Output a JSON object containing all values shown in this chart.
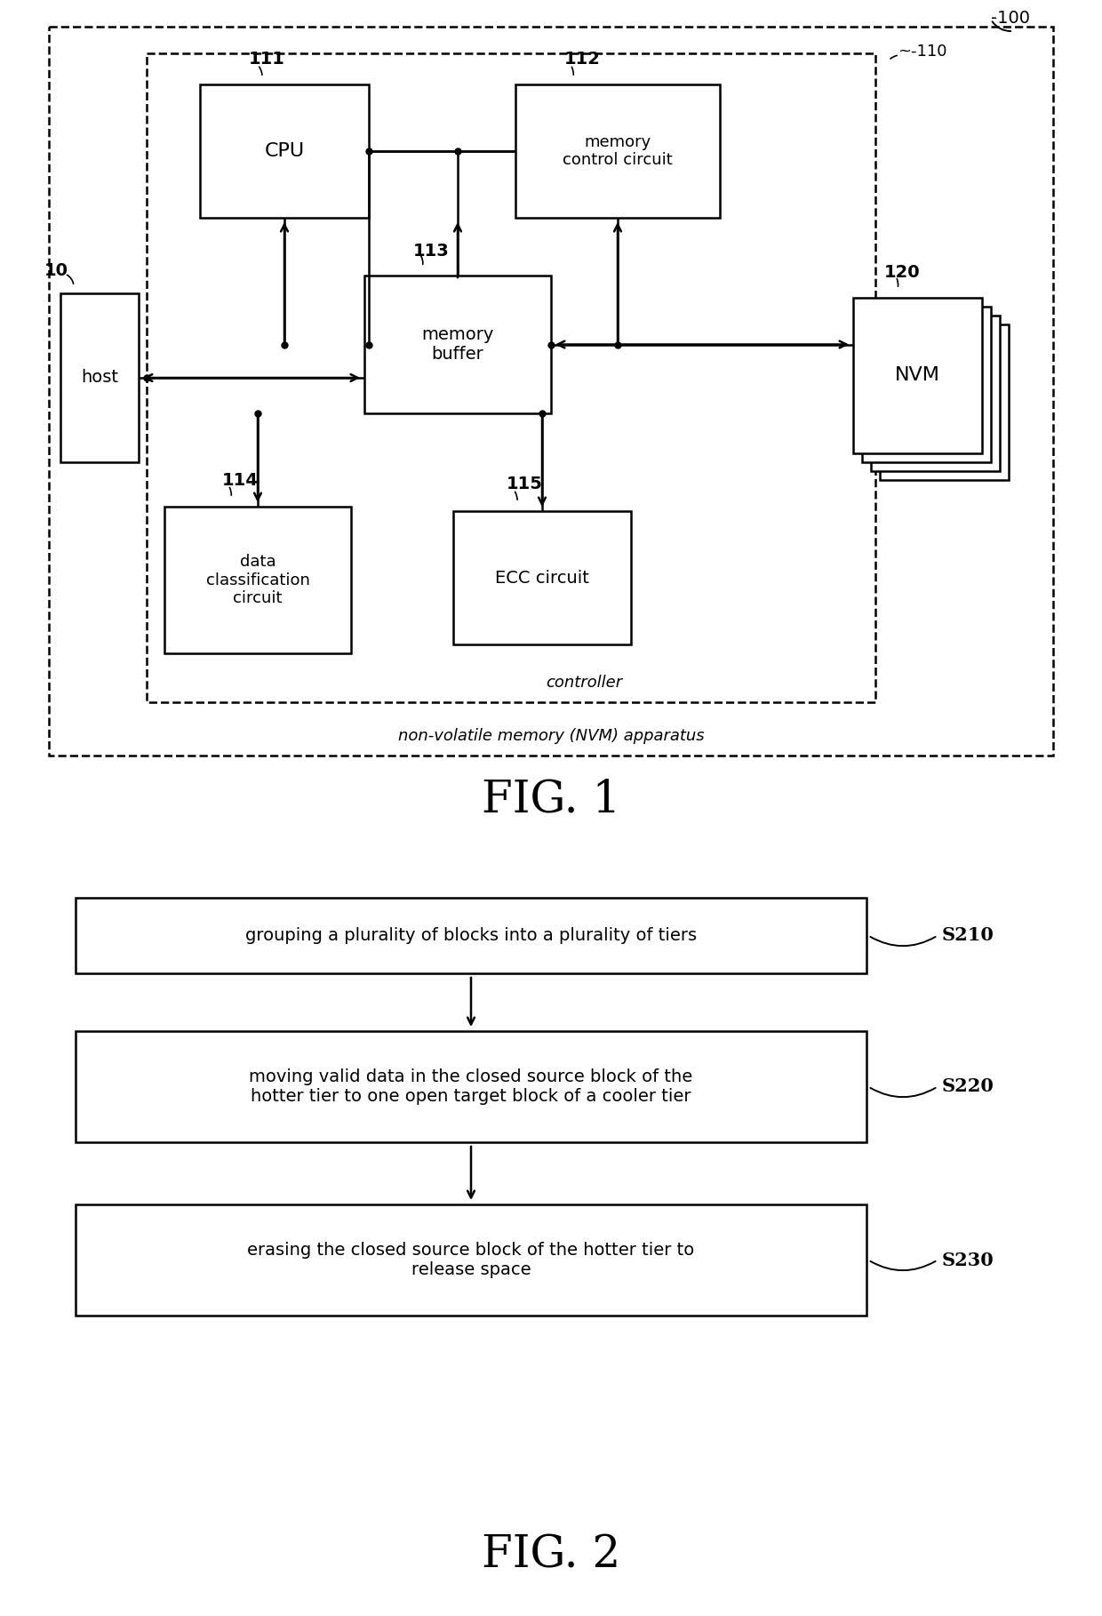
{
  "fig1": {
    "title": "FIG. 1",
    "outer_label": "non-volatile memory (NVM) apparatus",
    "inner_label": "controller",
    "host_label": "host",
    "host_ref": "10",
    "nvm_label": "NVM",
    "nvm_ref": "120",
    "cpu_label": "CPU",
    "cpu_ref": "111",
    "mcc_label": "memory\ncontrol circuit",
    "mcc_ref": "112",
    "mb_label": "memory\nbuffer",
    "mb_ref": "113",
    "dc_label": "data\nclassification\ncircuit",
    "dc_ref": "114",
    "ecc_label": "ECC circuit",
    "ecc_ref": "115",
    "outer_ref": "100",
    "inner_ref": "110"
  },
  "fig2": {
    "title": "FIG. 2",
    "steps": [
      {
        "label": "grouping a plurality of blocks into a plurality of tiers",
        "ref": "S210"
      },
      {
        "label": "moving valid data in the closed source block of the\nhotter tier to one open target block of a cooler tier",
        "ref": "S220"
      },
      {
        "label": "erasing the closed source block of the hotter tier to\nrelease space",
        "ref": "S230"
      }
    ]
  },
  "bg": "#ffffff",
  "lc": "#000000",
  "tc": "#000000"
}
